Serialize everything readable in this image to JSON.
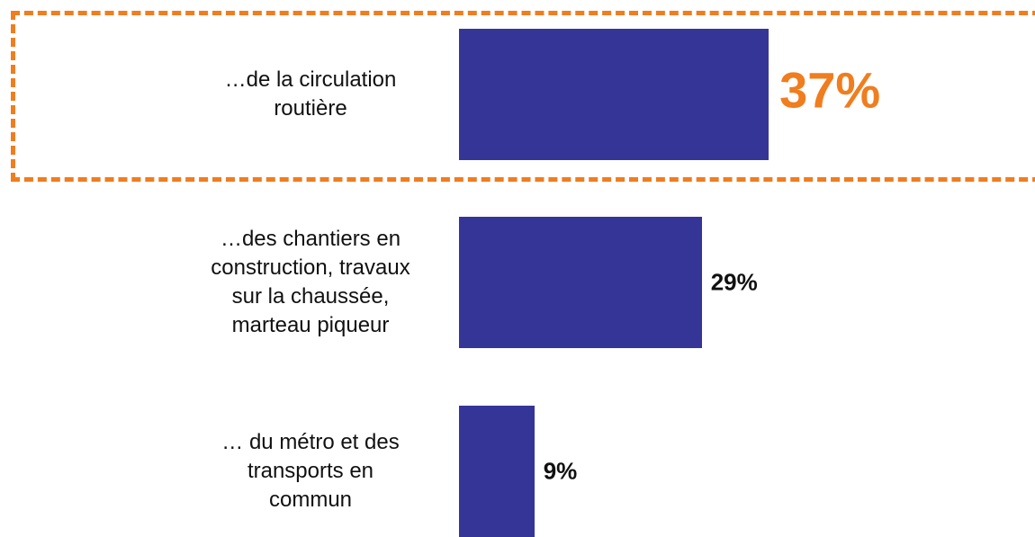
{
  "chart_data": {
    "type": "bar",
    "orientation": "horizontal",
    "categories": [
      "…de la circulation\nroutière",
      "…des chantiers en\nconstruction, travaux\nsur la chaussée,\nmarteau piqueur",
      "… du métro et des\ntransports en\ncommun"
    ],
    "values": [
      37,
      29,
      9
    ],
    "value_labels": [
      "37%",
      "29%",
      "9%"
    ],
    "color": "#353598",
    "highlight_index": 0,
    "highlight_color": "#f07d1e"
  }
}
